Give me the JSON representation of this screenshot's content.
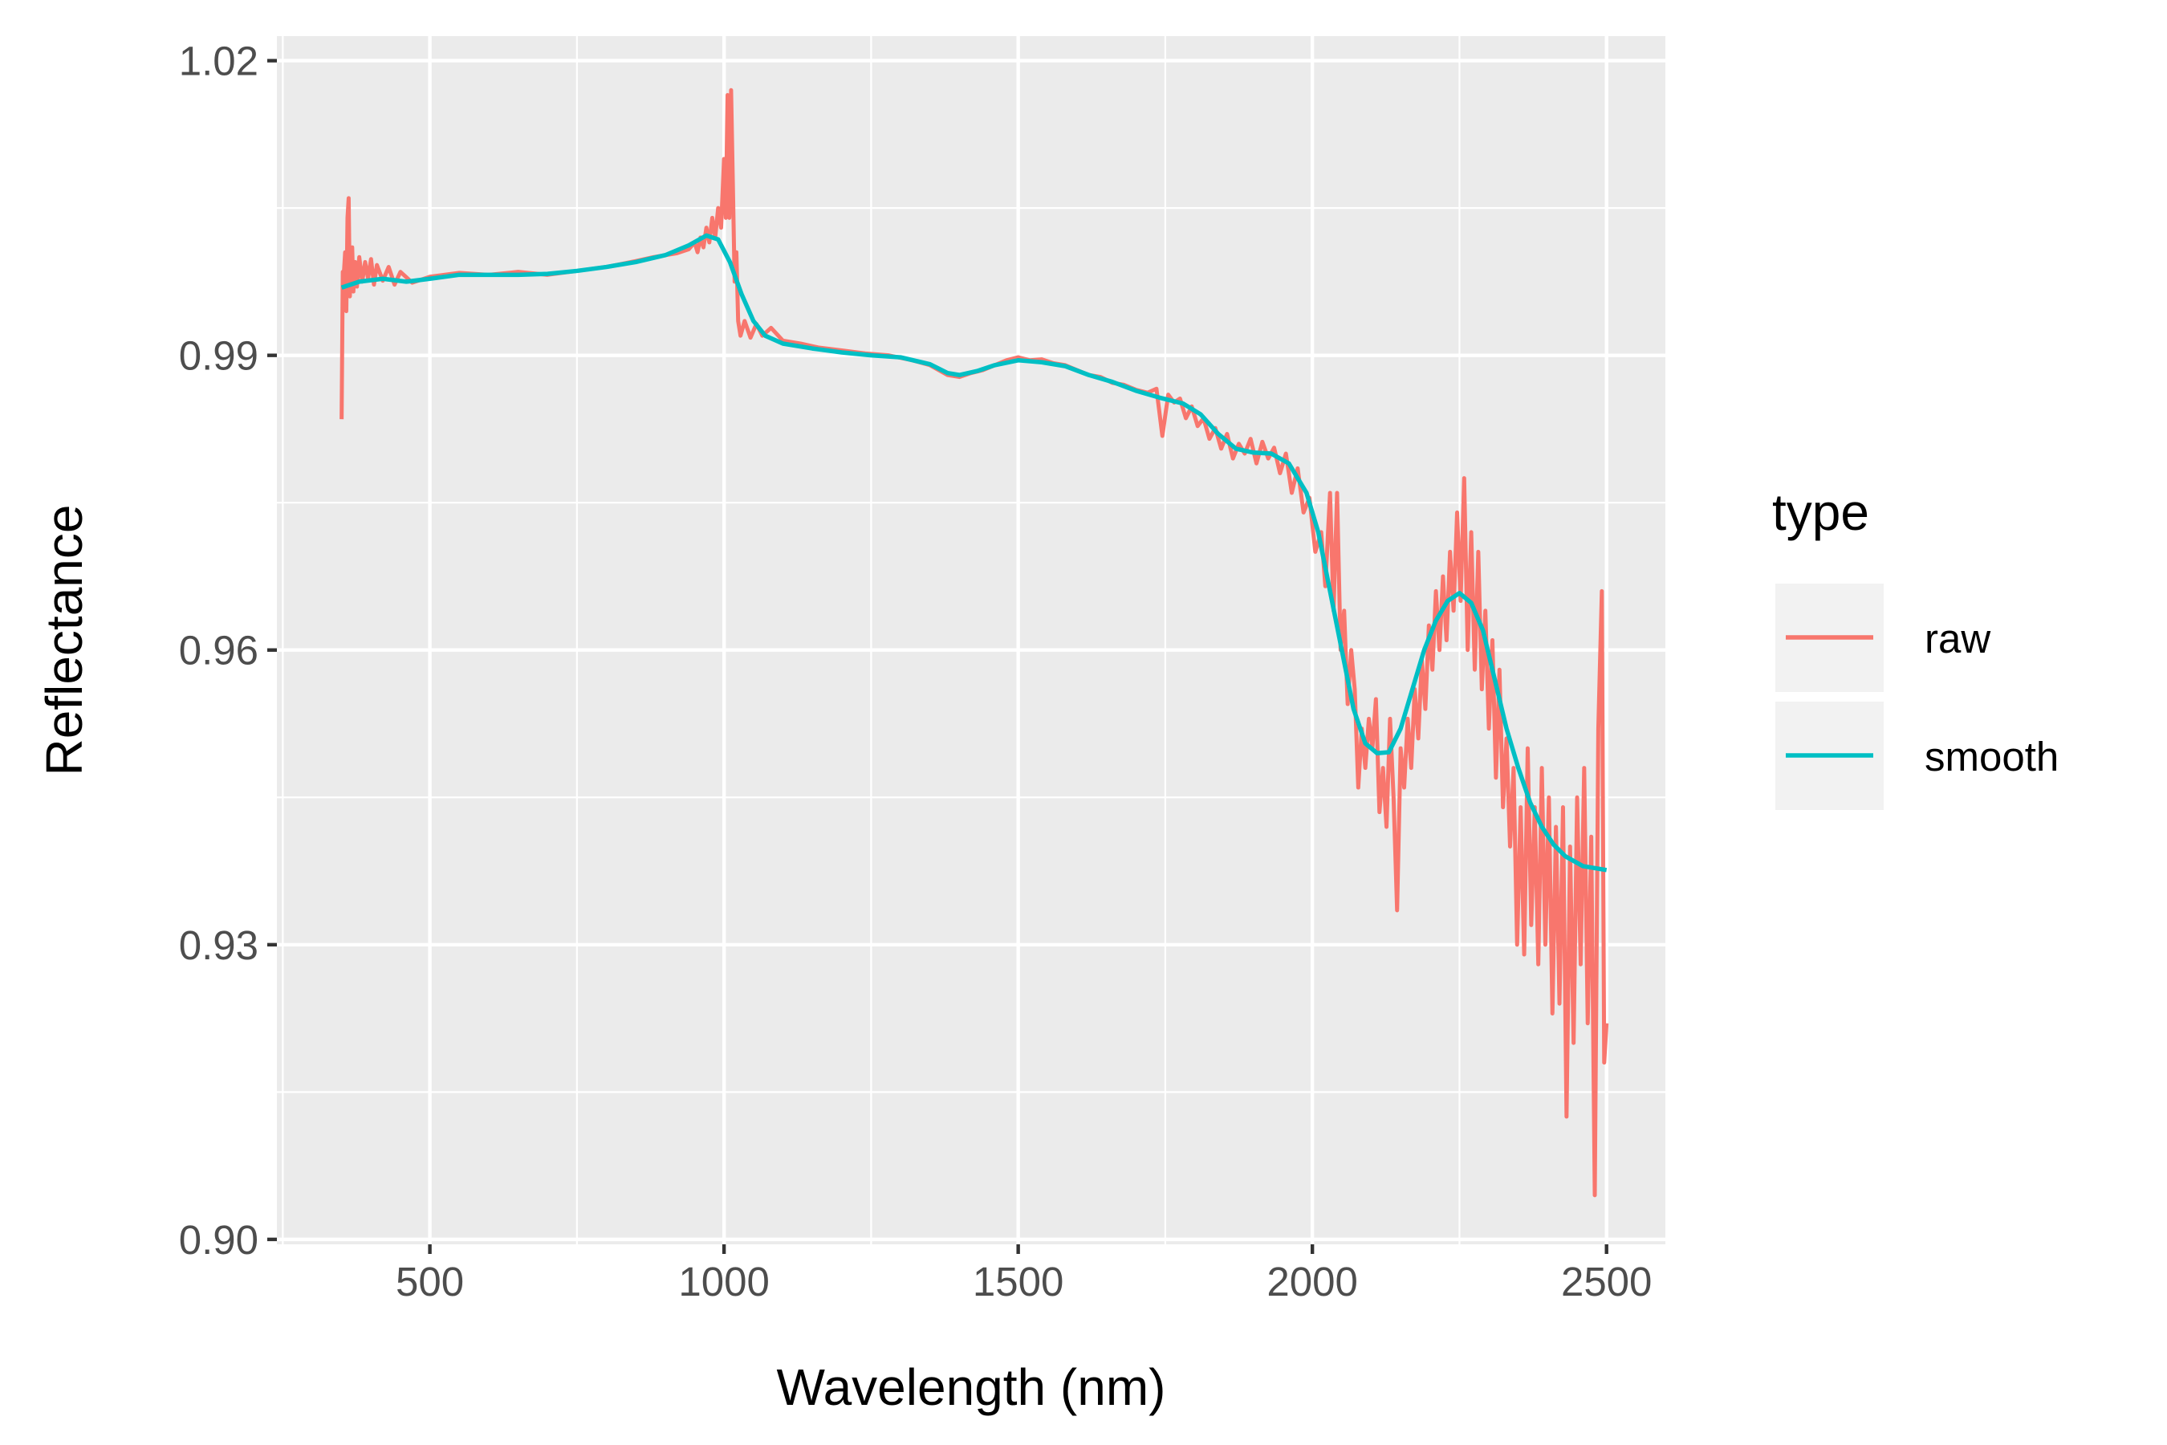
{
  "chart_data": {
    "type": "line",
    "title": "",
    "xlabel": "Wavelength (nm)",
    "ylabel": "Reflectance",
    "xlim": [
      240,
      2600
    ],
    "ylim": [
      0.8995,
      1.0225
    ],
    "x_ticks": [
      500,
      1000,
      1500,
      2000,
      2500
    ],
    "x_tick_labels": [
      "500",
      "1000",
      "1500",
      "2000",
      "2500"
    ],
    "y_ticks": [
      0.9,
      0.93,
      0.96,
      0.99,
      1.02
    ],
    "y_tick_labels": [
      "0.90",
      "0.93",
      "0.96",
      "0.99",
      "1.02"
    ],
    "grid": true,
    "legend": {
      "title": "type",
      "position": "right"
    },
    "series": [
      {
        "name": "raw",
        "color": "#F8766D",
        "points": [
          [
            350,
            0.9835
          ],
          [
            352,
            0.9985
          ],
          [
            354,
            0.9985
          ],
          [
            356,
            1.0005
          ],
          [
            358,
            0.9945
          ],
          [
            360,
            1.004
          ],
          [
            362,
            1.006
          ],
          [
            364,
            0.996
          ],
          [
            366,
            0.999
          ],
          [
            368,
            1.001
          ],
          [
            370,
            0.9965
          ],
          [
            373,
            0.9995
          ],
          [
            376,
            0.997
          ],
          [
            380,
            1.0
          ],
          [
            385,
            0.9975
          ],
          [
            390,
            0.9995
          ],
          [
            395,
            0.9978
          ],
          [
            400,
            0.9998
          ],
          [
            405,
            0.9972
          ],
          [
            410,
            0.9992
          ],
          [
            420,
            0.9976
          ],
          [
            430,
            0.999
          ],
          [
            440,
            0.9972
          ],
          [
            450,
            0.9985
          ],
          [
            470,
            0.9974
          ],
          [
            500,
            0.998
          ],
          [
            550,
            0.9984
          ],
          [
            600,
            0.9982
          ],
          [
            650,
            0.9985
          ],
          [
            700,
            0.9982
          ],
          [
            750,
            0.9986
          ],
          [
            800,
            0.999
          ],
          [
            850,
            0.9996
          ],
          [
            880,
            1.0
          ],
          [
            900,
            1.0002
          ],
          [
            920,
            1.0004
          ],
          [
            940,
            1.0008
          ],
          [
            950,
            1.0015
          ],
          [
            955,
            1.0005
          ],
          [
            960,
            1.002
          ],
          [
            965,
            1.001
          ],
          [
            970,
            1.003
          ],
          [
            975,
            1.0015
          ],
          [
            980,
            1.004
          ],
          [
            985,
            1.002
          ],
          [
            990,
            1.005
          ],
          [
            995,
            1.003
          ],
          [
            1000,
            1.01
          ],
          [
            1003,
            1.004
          ],
          [
            1006,
            1.0165
          ],
          [
            1009,
            1.004
          ],
          [
            1012,
            1.017
          ],
          [
            1015,
            1.0075
          ],
          [
            1018,
            0.9975
          ],
          [
            1021,
            1.0005
          ],
          [
            1024,
            0.9935
          ],
          [
            1028,
            0.992
          ],
          [
            1035,
            0.9935
          ],
          [
            1045,
            0.9918
          ],
          [
            1055,
            0.9932
          ],
          [
            1065,
            0.992
          ],
          [
            1080,
            0.9928
          ],
          [
            1100,
            0.9915
          ],
          [
            1130,
            0.9912
          ],
          [
            1160,
            0.9908
          ],
          [
            1200,
            0.9905
          ],
          [
            1240,
            0.9902
          ],
          [
            1280,
            0.99
          ],
          [
            1320,
            0.9895
          ],
          [
            1350,
            0.989
          ],
          [
            1380,
            0.988
          ],
          [
            1400,
            0.9878
          ],
          [
            1420,
            0.9882
          ],
          [
            1440,
            0.9885
          ],
          [
            1460,
            0.989
          ],
          [
            1480,
            0.9895
          ],
          [
            1500,
            0.9898
          ],
          [
            1520,
            0.9895
          ],
          [
            1540,
            0.9896
          ],
          [
            1560,
            0.9892
          ],
          [
            1580,
            0.989
          ],
          [
            1600,
            0.9885
          ],
          [
            1620,
            0.988
          ],
          [
            1640,
            0.9878
          ],
          [
            1660,
            0.9872
          ],
          [
            1680,
            0.987
          ],
          [
            1700,
            0.9865
          ],
          [
            1720,
            0.9862
          ],
          [
            1735,
            0.9866
          ],
          [
            1745,
            0.9818
          ],
          [
            1755,
            0.986
          ],
          [
            1765,
            0.9852
          ],
          [
            1775,
            0.9856
          ],
          [
            1785,
            0.9836
          ],
          [
            1795,
            0.9848
          ],
          [
            1805,
            0.9828
          ],
          [
            1815,
            0.9836
          ],
          [
            1825,
            0.9815
          ],
          [
            1835,
            0.9826
          ],
          [
            1845,
            0.9805
          ],
          [
            1855,
            0.982
          ],
          [
            1865,
            0.9795
          ],
          [
            1875,
            0.981
          ],
          [
            1885,
            0.98
          ],
          [
            1895,
            0.9815
          ],
          [
            1905,
            0.979
          ],
          [
            1915,
            0.9812
          ],
          [
            1925,
            0.9795
          ],
          [
            1935,
            0.9806
          ],
          [
            1945,
            0.978
          ],
          [
            1955,
            0.98
          ],
          [
            1965,
            0.976
          ],
          [
            1975,
            0.9785
          ],
          [
            1985,
            0.974
          ],
          [
            1995,
            0.9755
          ],
          [
            2005,
            0.97
          ],
          [
            2015,
            0.972
          ],
          [
            2022,
            0.9665
          ],
          [
            2030,
            0.976
          ],
          [
            2036,
            0.964
          ],
          [
            2042,
            0.976
          ],
          [
            2048,
            0.96
          ],
          [
            2054,
            0.964
          ],
          [
            2060,
            0.9545
          ],
          [
            2066,
            0.96
          ],
          [
            2072,
            0.956
          ],
          [
            2078,
            0.946
          ],
          [
            2084,
            0.952
          ],
          [
            2090,
            0.948
          ],
          [
            2096,
            0.953
          ],
          [
            2102,
            0.95
          ],
          [
            2108,
            0.955
          ],
          [
            2114,
            0.9435
          ],
          [
            2120,
            0.948
          ],
          [
            2126,
            0.942
          ],
          [
            2132,
            0.953
          ],
          [
            2138,
            0.945
          ],
          [
            2144,
            0.9335
          ],
          [
            2150,
            0.95
          ],
          [
            2156,
            0.946
          ],
          [
            2162,
            0.953
          ],
          [
            2168,
            0.948
          ],
          [
            2174,
            0.956
          ],
          [
            2180,
            0.951
          ],
          [
            2186,
            0.959
          ],
          [
            2192,
            0.954
          ],
          [
            2198,
            0.9625
          ],
          [
            2204,
            0.958
          ],
          [
            2210,
            0.966
          ],
          [
            2216,
            0.96
          ],
          [
            2222,
            0.9675
          ],
          [
            2228,
            0.961
          ],
          [
            2234,
            0.97
          ],
          [
            2240,
            0.964
          ],
          [
            2246,
            0.974
          ],
          [
            2252,
            0.965
          ],
          [
            2258,
            0.9775
          ],
          [
            2264,
            0.96
          ],
          [
            2270,
            0.972
          ],
          [
            2276,
            0.958
          ],
          [
            2282,
            0.97
          ],
          [
            2288,
            0.956
          ],
          [
            2294,
            0.964
          ],
          [
            2300,
            0.952
          ],
          [
            2306,
            0.961
          ],
          [
            2312,
            0.947
          ],
          [
            2318,
            0.958
          ],
          [
            2324,
            0.944
          ],
          [
            2330,
            0.951
          ],
          [
            2336,
            0.94
          ],
          [
            2342,
            0.948
          ],
          [
            2348,
            0.93
          ],
          [
            2354,
            0.944
          ],
          [
            2360,
            0.929
          ],
          [
            2366,
            0.95
          ],
          [
            2372,
            0.932
          ],
          [
            2378,
            0.944
          ],
          [
            2384,
            0.928
          ],
          [
            2390,
            0.948
          ],
          [
            2396,
            0.93
          ],
          [
            2402,
            0.945
          ],
          [
            2408,
            0.923
          ],
          [
            2414,
            0.942
          ],
          [
            2420,
            0.924
          ],
          [
            2426,
            0.944
          ],
          [
            2432,
            0.9125
          ],
          [
            2438,
            0.94
          ],
          [
            2444,
            0.92
          ],
          [
            2450,
            0.945
          ],
          [
            2456,
            0.928
          ],
          [
            2462,
            0.948
          ],
          [
            2468,
            0.922
          ],
          [
            2474,
            0.941
          ],
          [
            2480,
            0.9045
          ],
          [
            2486,
            0.952
          ],
          [
            2492,
            0.966
          ],
          [
            2496,
            0.918
          ],
          [
            2500,
            0.922
          ]
        ]
      },
      {
        "name": "smooth",
        "color": "#00BFC4",
        "points": [
          [
            350,
            0.9969
          ],
          [
            380,
            0.9975
          ],
          [
            420,
            0.9978
          ],
          [
            460,
            0.9975
          ],
          [
            500,
            0.9978
          ],
          [
            550,
            0.9982
          ],
          [
            600,
            0.9982
          ],
          [
            650,
            0.9982
          ],
          [
            700,
            0.9983
          ],
          [
            750,
            0.9986
          ],
          [
            800,
            0.999
          ],
          [
            850,
            0.9995
          ],
          [
            900,
            1.0002
          ],
          [
            940,
            1.0012
          ],
          [
            970,
            1.0022
          ],
          [
            990,
            1.0018
          ],
          [
            1010,
            0.9995
          ],
          [
            1030,
            0.9962
          ],
          [
            1050,
            0.9935
          ],
          [
            1070,
            0.992
          ],
          [
            1100,
            0.9912
          ],
          [
            1150,
            0.9907
          ],
          [
            1200,
            0.9903
          ],
          [
            1250,
            0.99
          ],
          [
            1300,
            0.9898
          ],
          [
            1350,
            0.9891
          ],
          [
            1380,
            0.9882
          ],
          [
            1400,
            0.988
          ],
          [
            1430,
            0.9884
          ],
          [
            1460,
            0.989
          ],
          [
            1500,
            0.9895
          ],
          [
            1540,
            0.9893
          ],
          [
            1580,
            0.9889
          ],
          [
            1620,
            0.988
          ],
          [
            1660,
            0.9873
          ],
          [
            1700,
            0.9864
          ],
          [
            1740,
            0.9857
          ],
          [
            1780,
            0.9851
          ],
          [
            1810,
            0.984
          ],
          [
            1840,
            0.982
          ],
          [
            1870,
            0.9805
          ],
          [
            1900,
            0.9801
          ],
          [
            1930,
            0.98
          ],
          [
            1960,
            0.979
          ],
          [
            1990,
            0.976
          ],
          [
            2010,
            0.972
          ],
          [
            2030,
            0.966
          ],
          [
            2050,
            0.96
          ],
          [
            2070,
            0.954
          ],
          [
            2090,
            0.9505
          ],
          [
            2110,
            0.9495
          ],
          [
            2130,
            0.9496
          ],
          [
            2150,
            0.952
          ],
          [
            2170,
            0.956
          ],
          [
            2190,
            0.96
          ],
          [
            2210,
            0.963
          ],
          [
            2230,
            0.965
          ],
          [
            2250,
            0.9658
          ],
          [
            2270,
            0.9648
          ],
          [
            2290,
            0.962
          ],
          [
            2310,
            0.957
          ],
          [
            2330,
            0.952
          ],
          [
            2350,
            0.948
          ],
          [
            2370,
            0.9445
          ],
          [
            2390,
            0.942
          ],
          [
            2410,
            0.9402
          ],
          [
            2430,
            0.939
          ],
          [
            2460,
            0.938
          ],
          [
            2500,
            0.9376
          ]
        ]
      }
    ]
  }
}
